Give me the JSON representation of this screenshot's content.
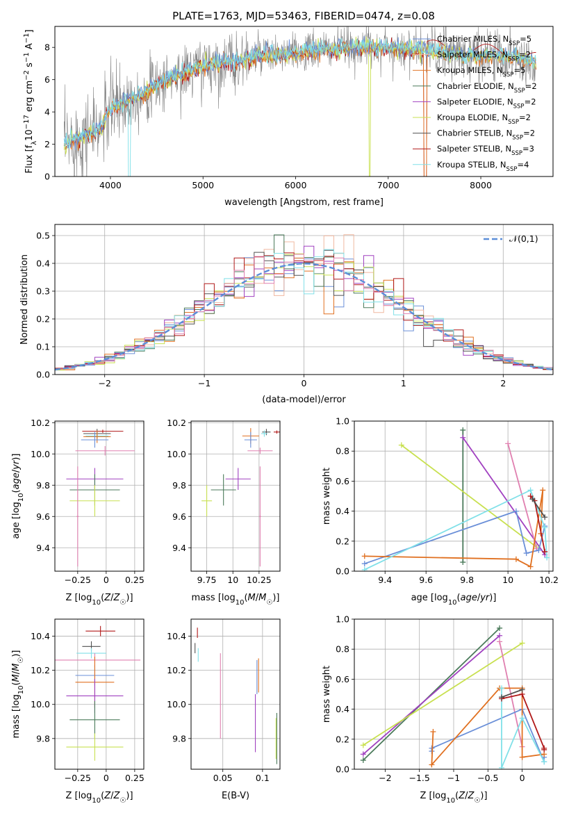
{
  "figure": {
    "title": "PLATE=1763, MJD=53463, FIBERID=0474, z=0.08"
  },
  "colors": {
    "chabrier_miles": "#6a8fd8",
    "salpeter_miles": "#f0b8a0",
    "kroupa_miles": "#e07020",
    "chabrier_elodie": "#4a7a5a",
    "salpeter_elodie": "#a040c0",
    "kroupa_elodie": "#c8e050",
    "chabrier_stelib": "#505050",
    "salpeter_stelib": "#b01818",
    "kroupa_stelib": "#80e0e8",
    "pink": "#e080b0",
    "data": "#808080",
    "grid": "#b0b0b0",
    "normal": "#5b8ed8"
  },
  "chart_data": [
    {
      "type": "line",
      "title": "PLATE=1763, MJD=53463, FIBERID=0474, z=0.08",
      "xlabel": "wavelength [Angstrom, rest frame]",
      "ylabel": "Flux [f_λ 10^-17 erg cm^-2 s^-1 A^-1]",
      "xlim": [
        3400,
        8780
      ],
      "ylim": [
        0,
        9.3
      ],
      "xticks": [
        4000,
        5000,
        6000,
        7000,
        8000
      ],
      "yticks": [
        0,
        2,
        4,
        6,
        8
      ],
      "legend_position": "top-right",
      "legend": [
        {
          "label": "Chabrier MILES, N_SSP=5",
          "color": "chabrier_miles"
        },
        {
          "label": "Salpeter MILES, N_SSP=2",
          "color": "salpeter_miles"
        },
        {
          "label": "Kroupa MILES, N_SSP=5",
          "color": "kroupa_miles"
        },
        {
          "label": "Chabrier ELODIE, N_SSP=2",
          "color": "chabrier_elodie"
        },
        {
          "label": "Salpeter ELODIE, N_SSP=2",
          "color": "salpeter_elodie"
        },
        {
          "label": "Kroupa ELODIE, N_SSP=2",
          "color": "kroupa_elodie"
        },
        {
          "label": "Chabrier STELIB, N_SSP=2",
          "color": "chabrier_stelib"
        },
        {
          "label": "Salpeter STELIB, N_SSP=3",
          "color": "salpeter_stelib"
        },
        {
          "label": "Kroupa STELIB, N_SSP=4",
          "color": "kroupa_stelib"
        }
      ],
      "continuum": {
        "x": [
          3500,
          3700,
          3900,
          4000,
          4200,
          4400,
          4600,
          4800,
          5000,
          5200,
          5400,
          5600,
          5800,
          6000,
          6200,
          6400,
          6600,
          6800,
          7000,
          7200,
          7400,
          7600,
          7800,
          8000,
          8200,
          8400,
          8600
        ],
        "y": [
          2.0,
          2.5,
          3.0,
          4.2,
          4.8,
          5.3,
          6.0,
          6.4,
          6.9,
          7.0,
          7.2,
          7.5,
          7.5,
          7.6,
          7.8,
          7.9,
          8.0,
          8.0,
          8.0,
          7.9,
          7.8,
          7.7,
          7.5,
          7.5,
          7.5,
          7.3,
          7.0
        ]
      }
    },
    {
      "type": "bar",
      "xlabel": "(data-model)/error",
      "ylabel": "Normed distribution",
      "xlim": [
        -2.5,
        2.5
      ],
      "ylim": [
        0,
        0.54
      ],
      "xticks": [
        -2,
        -1,
        0,
        1,
        2
      ],
      "yticks": [
        0.0,
        0.1,
        0.2,
        0.3,
        0.4,
        0.5
      ],
      "legend_position": "top-right",
      "reference_curve": {
        "label": "𝒩(0,1)",
        "mu": 0,
        "sigma": 1
      },
      "bin_width": 0.1,
      "bin_start": -2.5
    },
    {
      "type": "scatter",
      "xlabel": "Z [log10(Z/Z☉)]",
      "ylabel": "age  [log10(age/yr)]",
      "xlim": [
        -0.45,
        0.33
      ],
      "ylim": [
        9.25,
        10.21
      ],
      "xticks": [
        -0.25,
        0.0,
        0.25
      ],
      "yticks": [
        9.4,
        9.6,
        9.8,
        10.0,
        10.2
      ],
      "points": [
        {
          "x": -0.03,
          "y": 10.145,
          "xe": 0.18,
          "ye": 0.01,
          "color": "salpeter_stelib"
        },
        {
          "x": -0.08,
          "y": 10.13,
          "xe": 0.12,
          "ye": 0.03,
          "color": "chabrier_stelib"
        },
        {
          "x": -0.08,
          "y": 10.115,
          "xe": 0.1,
          "ye": 0.03,
          "color": "kroupa_stelib"
        },
        {
          "x": -0.08,
          "y": 10.11,
          "xe": 0.12,
          "ye": 0.04,
          "color": "kroupa_miles"
        },
        {
          "x": -0.1,
          "y": 10.09,
          "xe": 0.12,
          "ye": 0.05,
          "color": "chabrier_miles"
        },
        {
          "x": -0.01,
          "y": 10.02,
          "xe": 0.26,
          "ye": 0.03,
          "color": "pink"
        },
        {
          "x": -0.1,
          "y": 9.84,
          "xe": 0.25,
          "ye": 0.07,
          "color": "salpeter_elodie"
        },
        {
          "x": -0.1,
          "y": 9.77,
          "xe": 0.22,
          "ye": 0.1,
          "color": "chabrier_elodie"
        },
        {
          "x": -0.1,
          "y": 9.7,
          "xe": 0.22,
          "ye": 0.1,
          "color": "kroupa_elodie"
        },
        {
          "x": -0.25,
          "y": 9.6,
          "xe": 0.01,
          "ye": 0.32,
          "color": "pink"
        }
      ]
    },
    {
      "type": "scatter",
      "xlabel": "mass [log10(M/M☉)]",
      "ylabel": "",
      "xlim": [
        9.6,
        10.45
      ],
      "ylim": [
        9.25,
        10.21
      ],
      "xticks": [
        9.75,
        10.0,
        10.25
      ],
      "yticks": [
        9.4,
        9.6,
        9.8,
        10.0,
        10.2
      ],
      "points": [
        {
          "x": 10.42,
          "y": 10.14,
          "xe": 0.03,
          "ye": 0.01,
          "color": "salpeter_stelib"
        },
        {
          "x": 10.32,
          "y": 10.14,
          "xe": 0.04,
          "ye": 0.02,
          "color": "chabrier_stelib"
        },
        {
          "x": 10.3,
          "y": 10.13,
          "xe": 0.03,
          "ye": 0.02,
          "color": "kroupa_stelib"
        },
        {
          "x": 10.17,
          "y": 10.115,
          "xe": 0.08,
          "ye": 0.05,
          "color": "kroupa_miles"
        },
        {
          "x": 10.17,
          "y": 10.09,
          "xe": 0.06,
          "ye": 0.05,
          "color": "chabrier_miles"
        },
        {
          "x": 10.26,
          "y": 10.02,
          "xe": 0.12,
          "ye": 0.02,
          "color": "pink"
        },
        {
          "x": 10.05,
          "y": 9.84,
          "xe": 0.12,
          "ye": 0.07,
          "color": "salpeter_elodie"
        },
        {
          "x": 9.91,
          "y": 9.77,
          "xe": 0.12,
          "ye": 0.1,
          "color": "chabrier_elodie"
        },
        {
          "x": 9.75,
          "y": 9.7,
          "xe": 0.05,
          "ye": 0.1,
          "color": "kroupa_elodie"
        },
        {
          "x": 10.26,
          "y": 9.6,
          "xe": 0.01,
          "ye": 0.32,
          "color": "pink"
        }
      ]
    },
    {
      "type": "line",
      "xlabel": "age  [log10(age/yr)]",
      "ylabel": "mass weight",
      "xlim": [
        9.25,
        10.22
      ],
      "ylim": [
        0,
        1.0
      ],
      "xticks": [
        9.4,
        9.6,
        9.8,
        10.0,
        10.2
      ],
      "yticks": [
        0.0,
        0.2,
        0.4,
        0.6,
        0.8,
        1.0
      ],
      "series": [
        {
          "color": "chabrier_elodie",
          "x": [
            9.78,
            9.78
          ],
          "y": [
            0.94,
            0.06
          ]
        },
        {
          "color": "salpeter_elodie",
          "x": [
            9.78,
            10.18
          ],
          "y": [
            0.89,
            0.11
          ]
        },
        {
          "color": "kroupa_elodie",
          "x": [
            9.48,
            10.14
          ],
          "y": [
            0.84,
            0.16
          ]
        },
        {
          "color": "pink",
          "x": [
            10.0,
            10.14
          ],
          "y": [
            0.85,
            0.15
          ]
        },
        {
          "color": "chabrier_miles",
          "x": [
            9.3,
            10.04,
            10.09,
            10.15,
            10.18
          ],
          "y": [
            0.05,
            0.4,
            0.12,
            0.14,
            0.3
          ]
        },
        {
          "color": "kroupa_miles",
          "x": [
            9.3,
            10.04,
            10.11,
            10.17,
            10.16
          ],
          "y": [
            0.1,
            0.08,
            0.03,
            0.54,
            0.25
          ]
        },
        {
          "color": "kroupa_stelib",
          "x": [
            9.3,
            10.11,
            10.18,
            10.19
          ],
          "y": [
            0.01,
            0.54,
            0.29,
            0.09
          ]
        },
        {
          "color": "salpeter_stelib",
          "x": [
            10.11,
            10.13,
            10.18
          ],
          "y": [
            0.5,
            0.47,
            0.13
          ]
        },
        {
          "color": "chabrier_stelib",
          "x": [
            10.12,
            10.18
          ],
          "y": [
            0.48,
            0.36
          ]
        }
      ]
    },
    {
      "type": "scatter",
      "xlabel": "Z [log10(Z/Z☉)]",
      "ylabel": "mass [log10(M/M☉)]",
      "xlim": [
        -0.45,
        0.33
      ],
      "ylim": [
        9.62,
        10.5
      ],
      "xticks": [
        -0.25,
        0.0,
        0.25
      ],
      "yticks": [
        9.8,
        10.0,
        10.2,
        10.4
      ],
      "points": [
        {
          "x": -0.05,
          "y": 10.43,
          "xe": 0.13,
          "ye": 0.03,
          "color": "salpeter_stelib"
        },
        {
          "x": -0.13,
          "y": 10.34,
          "xe": 0.08,
          "ye": 0.03,
          "color": "chabrier_stelib"
        },
        {
          "x": -0.13,
          "y": 10.3,
          "xe": 0.13,
          "ye": 0.03,
          "color": "kroupa_stelib"
        },
        {
          "x": -0.1,
          "y": 10.26,
          "xe": 0.4,
          "ye": 0.04,
          "color": "pink"
        },
        {
          "x": -0.1,
          "y": 10.17,
          "xe": 0.17,
          "ye": 0.06,
          "color": "chabrier_miles"
        },
        {
          "x": -0.1,
          "y": 10.13,
          "xe": 0.17,
          "ye": 0.15,
          "color": "kroupa_miles"
        },
        {
          "x": -0.1,
          "y": 10.05,
          "xe": 0.25,
          "ye": 0.1,
          "color": "salpeter_elodie"
        },
        {
          "x": -0.1,
          "y": 9.91,
          "xe": 0.22,
          "ye": 0.11,
          "color": "chabrier_elodie"
        },
        {
          "x": -0.1,
          "y": 9.75,
          "xe": 0.25,
          "ye": 0.08,
          "color": "kroupa_elodie"
        }
      ]
    },
    {
      "type": "scatter",
      "xlabel": "E(B-V)",
      "ylabel": "",
      "xlim": [
        0.01,
        0.122
      ],
      "ylim": [
        9.62,
        10.5
      ],
      "xticks": [
        0.05,
        0.1
      ],
      "yticks": [
        9.8,
        10.0,
        10.2,
        10.4
      ],
      "points": [
        {
          "x": 0.018,
          "y": 10.42,
          "ye": 0.03,
          "color": "salpeter_stelib"
        },
        {
          "x": 0.015,
          "y": 10.33,
          "ye": 0.03,
          "color": "chabrier_stelib"
        },
        {
          "x": 0.019,
          "y": 10.29,
          "ye": 0.04,
          "color": "kroupa_stelib"
        },
        {
          "x": 0.047,
          "y": 10.05,
          "ye": 0.25,
          "color": "pink"
        },
        {
          "x": 0.093,
          "y": 10.16,
          "ye": 0.1,
          "color": "chabrier_miles"
        },
        {
          "x": 0.095,
          "y": 10.17,
          "ye": 0.1,
          "color": "kroupa_miles"
        },
        {
          "x": 0.091,
          "y": 9.89,
          "ye": 0.17,
          "color": "salpeter_elodie"
        },
        {
          "x": 0.118,
          "y": 9.8,
          "ye": 0.15,
          "color": "chabrier_elodie"
        },
        {
          "x": 0.117,
          "y": 9.8,
          "ye": 0.12,
          "color": "kroupa_elodie"
        }
      ]
    },
    {
      "type": "line",
      "xlabel": "Z [log10(Z/Z☉)]",
      "ylabel": "mass weight",
      "xlim": [
        -2.45,
        0.45
      ],
      "ylim": [
        0,
        1.0
      ],
      "xticks": [
        -2.0,
        -1.5,
        -1.0,
        -0.5,
        0.0
      ],
      "yticks": [
        0.0,
        0.2,
        0.4,
        0.6,
        0.8,
        1.0
      ],
      "series": [
        {
          "color": "chabrier_elodie",
          "x": [
            -2.32,
            -0.33
          ],
          "y": [
            0.06,
            0.94
          ]
        },
        {
          "color": "salpeter_elodie",
          "x": [
            -2.32,
            -0.33
          ],
          "y": [
            0.1,
            0.89
          ]
        },
        {
          "color": "kroupa_elodie",
          "x": [
            -2.32,
            0.0
          ],
          "y": [
            0.16,
            0.84
          ]
        },
        {
          "color": "pink",
          "x": [
            -0.33,
            0.0
          ],
          "y": [
            0.85,
            0.15
          ]
        },
        {
          "color": "chabrier_miles",
          "x": [
            -1.32,
            -1.32,
            0.0,
            0.32,
            0.32
          ],
          "y": [
            0.12,
            0.14,
            0.4,
            0.05,
            0.08
          ]
        },
        {
          "color": "kroupa_miles",
          "x": [
            -1.3,
            -1.32,
            -0.33,
            0.0,
            0.0,
            0.32
          ],
          "y": [
            0.25,
            0.03,
            0.54,
            0.54,
            0.08,
            0.1
          ]
        },
        {
          "color": "kroupa_stelib",
          "x": [
            -0.3,
            -0.3,
            0.0,
            0.32
          ],
          "y": [
            0.54,
            0.01,
            0.34,
            0.05
          ]
        },
        {
          "color": "salpeter_stelib",
          "x": [
            -0.3,
            0.0,
            0.32,
            0.32
          ],
          "y": [
            0.47,
            0.5,
            0.14,
            0.13
          ]
        },
        {
          "color": "chabrier_stelib",
          "x": [
            -0.3,
            0.0
          ],
          "y": [
            0.48,
            0.53
          ]
        }
      ]
    }
  ]
}
